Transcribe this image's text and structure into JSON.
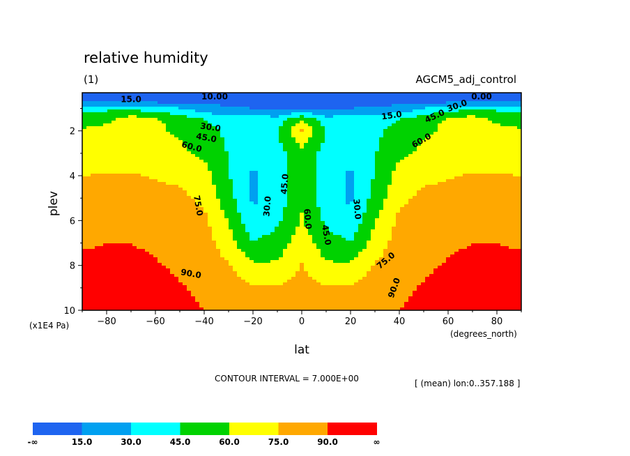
{
  "chart_data": {
    "type": "heatmap",
    "title": "relative humidity",
    "subtitle": "(1)",
    "dataset": "AGCM5_adj_control",
    "xlabel": "lat",
    "x_unit": "(degrees_north)",
    "ylabel": "plev",
    "y_unit": "(x1E4 Pa)",
    "xlim": [
      -90,
      90
    ],
    "ylim": [
      10,
      0.3
    ],
    "x_ticks": [
      "-80",
      "-60",
      "-40",
      "-20",
      "0",
      "20",
      "40",
      "60",
      "80"
    ],
    "y_ticks": [
      "2",
      "4",
      "6",
      "8",
      "10"
    ],
    "contour_interval_text": "CONTOUR INTERVAL = 7.000E+00",
    "mean_text": "[ (mean) lon:0..357.188 ]",
    "colorbar": {
      "labels": [
        "-∞",
        "15.0",
        "30.0",
        "45.0",
        "60.0",
        "75.0",
        "90.0",
        "∞"
      ],
      "colors": [
        "#1e64f0",
        "#00a0f0",
        "#00ffff",
        "#00d200",
        "#ffff00",
        "#ffa800",
        "#ff0000"
      ]
    },
    "contour_labels": [
      "10.00",
      "15.0",
      "30.0",
      "45.0",
      "60.0",
      "75.0",
      "90.0",
      "0.00"
    ],
    "lat_grid": [
      -90,
      -80,
      -70,
      -60,
      -50,
      -40,
      -30,
      -20,
      -10,
      0,
      10,
      20,
      30,
      40,
      50,
      60,
      70,
      80,
      90
    ],
    "plev_grid": [
      0.3,
      0.7,
      1.0,
      1.5,
      2.0,
      3.0,
      4.0,
      5.0,
      6.0,
      7.0,
      8.0,
      9.0,
      10.0
    ],
    "values": [
      [
        8,
        8,
        8,
        8,
        8,
        8,
        8,
        8,
        8,
        8,
        8,
        8,
        8,
        8,
        8,
        8,
        8,
        8,
        8
      ],
      [
        14,
        14,
        14,
        12,
        11,
        10,
        10,
        10,
        10,
        10,
        10,
        10,
        10,
        10,
        10,
        12,
        14,
        14,
        14
      ],
      [
        42,
        42,
        40,
        38,
        30,
        22,
        18,
        15,
        15,
        15,
        15,
        15,
        18,
        20,
        30,
        38,
        42,
        42,
        42
      ],
      [
        52,
        56,
        70,
        62,
        55,
        45,
        35,
        38,
        35,
        60,
        35,
        38,
        35,
        45,
        55,
        62,
        70,
        56,
        52
      ],
      [
        62,
        66,
        66,
        62,
        58,
        50,
        42,
        40,
        45,
        76,
        45,
        40,
        42,
        50,
        58,
        62,
        66,
        66,
        62
      ],
      [
        66,
        68,
        68,
        66,
        63,
        57,
        44,
        34,
        40,
        54,
        40,
        34,
        44,
        57,
        63,
        66,
        68,
        68,
        66
      ],
      [
        75,
        76,
        76,
        74,
        72,
        66,
        46,
        28,
        36,
        55,
        36,
        28,
        46,
        66,
        72,
        74,
        76,
        76,
        75
      ],
      [
        78,
        80,
        80,
        79,
        78,
        72,
        50,
        28,
        36,
        57,
        36,
        28,
        50,
        72,
        78,
        79,
        80,
        80,
        78
      ],
      [
        82,
        84,
        84,
        83,
        82,
        78,
        60,
        32,
        42,
        62,
        42,
        32,
        60,
        78,
        82,
        83,
        84,
        84,
        82
      ],
      [
        88,
        90,
        90,
        88,
        85,
        82,
        66,
        46,
        52,
        68,
        52,
        46,
        66,
        82,
        85,
        88,
        90,
        90,
        88
      ],
      [
        94,
        94,
        93,
        91,
        88,
        85,
        76,
        62,
        62,
        76,
        62,
        62,
        76,
        85,
        88,
        91,
        93,
        94,
        94
      ],
      [
        95,
        95,
        95,
        94,
        91,
        88,
        83,
        77,
        76,
        80,
        76,
        77,
        83,
        88,
        91,
        94,
        95,
        95,
        95
      ],
      [
        95,
        95,
        95,
        95,
        92,
        90,
        85,
        80,
        79,
        82,
        79,
        80,
        85,
        90,
        92,
        95,
        95,
        95,
        95
      ]
    ]
  }
}
